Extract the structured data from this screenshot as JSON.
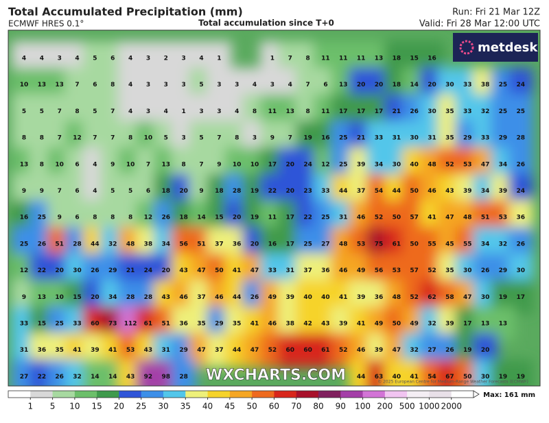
{
  "header": {
    "title": "Total Accumulated Precipitation (mm)",
    "model": "ECMWF HRES 0.1°",
    "subtitle": "Total accumulation since T+0",
    "run": "Run: Fri 21 Mar 12Z",
    "valid": "Valid: Fri 28 Mar 12:00 UTC"
  },
  "logo": "metdesk",
  "watermark": "WXCHARTS.COM",
  "copyright": "© 2025 European Centre for Medium-Range Weather Forecasts (ECMWF)",
  "map": {
    "grid": [
      [
        4,
        4,
        3,
        4,
        5,
        6,
        4,
        3,
        2,
        3,
        4,
        1,
        null,
        null,
        1,
        7,
        8,
        11,
        11,
        11,
        13,
        18,
        15,
        16,
        null,
        null,
        null,
        null,
        null
      ],
      [
        10,
        13,
        13,
        7,
        6,
        8,
        4,
        3,
        3,
        3,
        5,
        3,
        3,
        4,
        3,
        4,
        7,
        6,
        13,
        20,
        20,
        18,
        14,
        20,
        30,
        33,
        38,
        25,
        24
      ],
      [
        5,
        5,
        7,
        8,
        5,
        7,
        4,
        3,
        4,
        1,
        3,
        3,
        4,
        8,
        11,
        13,
        8,
        11,
        17,
        17,
        17,
        21,
        26,
        30,
        35,
        33,
        32,
        25,
        25
      ],
      [
        8,
        8,
        7,
        12,
        7,
        7,
        8,
        10,
        5,
        3,
        5,
        7,
        8,
        3,
        9,
        7,
        19,
        16,
        25,
        21,
        33,
        31,
        30,
        31,
        35,
        29,
        33,
        29,
        28
      ],
      [
        13,
        8,
        10,
        6,
        4,
        9,
        10,
        7,
        13,
        8,
        7,
        9,
        10,
        10,
        17,
        20,
        24,
        12,
        25,
        39,
        34,
        30,
        40,
        48,
        52,
        53,
        47,
        34,
        26
      ],
      [
        9,
        9,
        7,
        6,
        4,
        5,
        5,
        6,
        18,
        20,
        9,
        18,
        28,
        19,
        22,
        20,
        23,
        33,
        44,
        37,
        54,
        44,
        50,
        46,
        43,
        39,
        34,
        39,
        24
      ],
      [
        16,
        25,
        9,
        6,
        8,
        8,
        8,
        12,
        26,
        18,
        14,
        15,
        20,
        19,
        11,
        17,
        22,
        25,
        31,
        46,
        52,
        50,
        57,
        41,
        47,
        48,
        51,
        53,
        36
      ],
      [
        25,
        26,
        51,
        28,
        44,
        32,
        48,
        38,
        34,
        56,
        51,
        37,
        36,
        20,
        16,
        17,
        25,
        27,
        48,
        53,
        75,
        61,
        50,
        55,
        45,
        55,
        34,
        32,
        26
      ],
      [
        12,
        22,
        20,
        30,
        26,
        29,
        21,
        24,
        20,
        43,
        47,
        50,
        41,
        47,
        33,
        31,
        37,
        36,
        46,
        49,
        56,
        53,
        57,
        52,
        35,
        30,
        26,
        29,
        30
      ],
      [
        9,
        13,
        10,
        15,
        20,
        34,
        28,
        28,
        43,
        46,
        37,
        46,
        44,
        26,
        49,
        39,
        40,
        40,
        41,
        39,
        36,
        48,
        52,
        62,
        58,
        47,
        30,
        19,
        17
      ],
      [
        33,
        15,
        25,
        33,
        60,
        73,
        112,
        61,
        51,
        36,
        35,
        29,
        35,
        41,
        46,
        38,
        42,
        43,
        39,
        41,
        49,
        50,
        49,
        32,
        39,
        17,
        13,
        13,
        null
      ],
      [
        31,
        36,
        35,
        41,
        39,
        41,
        53,
        43,
        31,
        29,
        47,
        37,
        44,
        47,
        52,
        60,
        60,
        61,
        52,
        46,
        39,
        47,
        32,
        27,
        26,
        19,
        20,
        null,
        null
      ],
      [
        27,
        22,
        26,
        32,
        14,
        14,
        43,
        92,
        98,
        28,
        null,
        null,
        null,
        null,
        null,
        null,
        null,
        null,
        null,
        44,
        63,
        40,
        41,
        54,
        67,
        50,
        30,
        19,
        19
      ]
    ]
  },
  "colorbar": {
    "labels": [
      1,
      5,
      10,
      15,
      20,
      25,
      30,
      35,
      40,
      45,
      50,
      60,
      70,
      80,
      90,
      100,
      200,
      500,
      1000,
      2000
    ],
    "colors": [
      "#ffffff",
      "#d8d8d8",
      "#a7d9a0",
      "#6cbf6a",
      "#3f9a4c",
      "#2f55d8",
      "#3d8fe8",
      "#52c6ea",
      "#eef07a",
      "#f6d32a",
      "#f5a623",
      "#ee6a1e",
      "#d8261b",
      "#a8102a",
      "#80205e",
      "#a43fa8",
      "#d274d6",
      "#f1c4f1",
      "#f4eef4",
      "#e8e0e8",
      "#ffffff"
    ],
    "max_label": "Max: 161 mm"
  }
}
